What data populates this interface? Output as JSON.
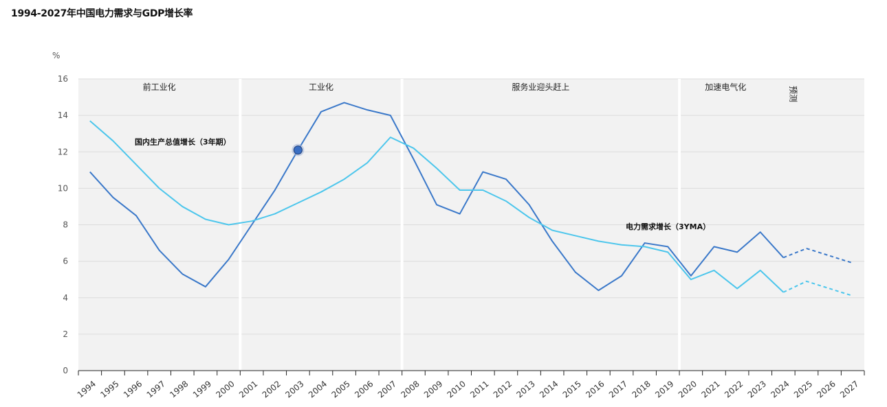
{
  "title": "1994-2027年中国电力需求与GDP增长率",
  "chart_data": {
    "type": "line",
    "title": "1994-2027年中国电力需求与GDP增长率",
    "ylabel": "%",
    "ylim": [
      0,
      16
    ],
    "yticks": [
      0,
      2,
      4,
      6,
      8,
      10,
      12,
      14,
      16
    ],
    "grid": true,
    "x": [
      1994,
      1995,
      1996,
      1997,
      1998,
      1999,
      2000,
      2001,
      2002,
      2003,
      2004,
      2005,
      2006,
      2007,
      2008,
      2009,
      2010,
      2011,
      2012,
      2013,
      2014,
      2015,
      2016,
      2017,
      2018,
      2019,
      2020,
      2021,
      2022,
      2023,
      2024,
      2025,
      2026,
      2027
    ],
    "forecast_from": 2024,
    "series": [
      {
        "name": "电力需求增长（3YMA）",
        "color": "#3a78c9",
        "values": [
          10.9,
          9.5,
          8.5,
          6.6,
          5.3,
          4.6,
          6.1,
          8.0,
          9.9,
          12.1,
          14.2,
          14.7,
          14.3,
          14.0,
          11.6,
          9.1,
          8.6,
          10.9,
          10.5,
          9.1,
          7.1,
          5.4,
          4.4,
          5.2,
          7.0,
          6.8,
          5.2,
          6.8,
          6.5,
          7.6,
          6.2,
          6.7,
          6.3,
          5.9
        ]
      },
      {
        "name": "国内生产总值增长（3年期）",
        "color": "#4cc6ec",
        "values": [
          13.7,
          12.6,
          11.3,
          10.0,
          9.0,
          8.3,
          8.0,
          8.2,
          8.6,
          9.2,
          9.8,
          10.5,
          11.4,
          12.8,
          12.2,
          11.1,
          9.9,
          9.9,
          9.3,
          8.4,
          7.7,
          7.4,
          7.1,
          6.9,
          6.8,
          6.5,
          5.0,
          5.5,
          4.5,
          5.5,
          4.3,
          4.9,
          4.5,
          4.1
        ]
      }
    ],
    "eras": [
      {
        "label": "前工业化",
        "start": 1994,
        "end": 2000
      },
      {
        "label": "工业化",
        "start": 2001,
        "end": 2007
      },
      {
        "label": "服务业迎头赶上",
        "start": 2008,
        "end": 2019
      },
      {
        "label": "加速电气化",
        "start": 2020,
        "end": 2023
      },
      {
        "label": "预测",
        "start": 2024,
        "end": 2027
      }
    ],
    "highlight": {
      "series": 0,
      "x": 2003
    }
  }
}
